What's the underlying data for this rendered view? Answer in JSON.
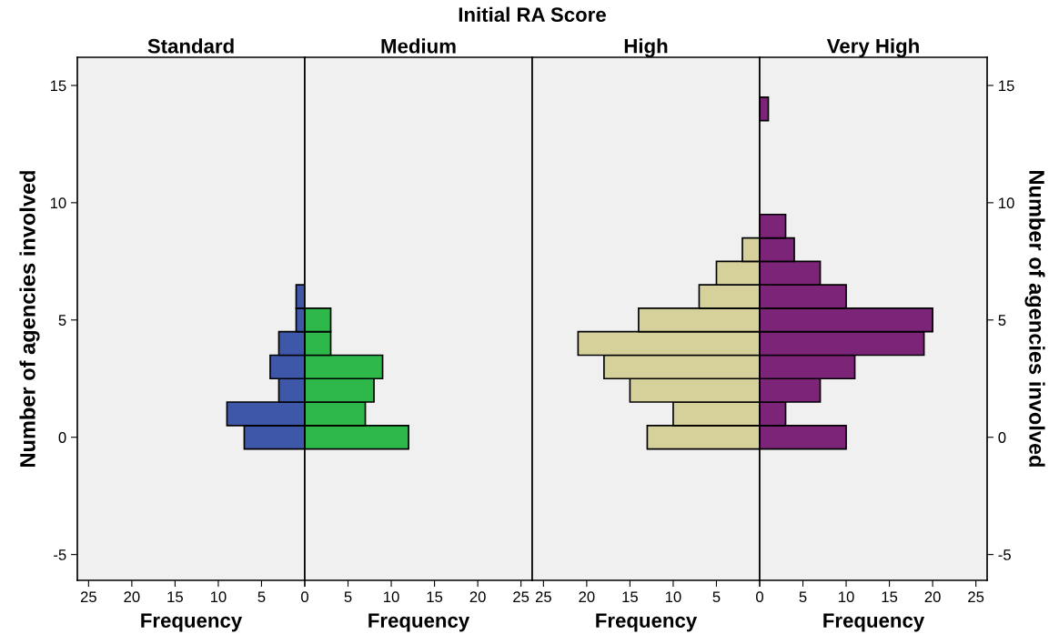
{
  "chart_data": [
    {
      "type": "histogram",
      "orientation": "horizontal",
      "title": "Standard",
      "xlabel": "Frequency",
      "ylabel": "Number of agencies involved",
      "annotations": [
        "Initial RA Score"
      ],
      "bins": [
        -0.5,
        0.5,
        1.5,
        2.5,
        3.5,
        4.5,
        5.5,
        6.5
      ],
      "series": [
        {
          "color": "#3f57a8",
          "values": [
            7,
            9,
            3,
            4,
            3,
            1,
            1
          ]
        }
      ],
      "xlim": [
        26.3,
        0
      ],
      "xticks": [
        {
          "value": 0,
          "label": null
        },
        5,
        10,
        15,
        20,
        25
      ],
      "ylim": [
        -6.1,
        16.2
      ],
      "yticks": [
        -5,
        0,
        5,
        10,
        15
      ],
      "grid": false
    },
    {
      "type": "histogram",
      "orientation": "horizontal",
      "title": "Medium",
      "xlabel": "Frequency",
      "bins": [
        -0.5,
        0.5,
        1.5,
        2.5,
        3.5,
        4.5,
        5.5
      ],
      "series": [
        {
          "color": "#2eb84a",
          "values": [
            12,
            7,
            8,
            9,
            3,
            3
          ]
        }
      ],
      "xlim": [
        0,
        26.3
      ],
      "xticks": [
        0,
        5,
        10,
        15,
        20,
        25
      ],
      "ylim": [
        -6.1,
        16.2
      ],
      "tick_labels": "x",
      "grid": false
    },
    {
      "type": "histogram",
      "orientation": "horizontal",
      "title": "High",
      "xlabel": "Frequency",
      "bins": [
        -0.5,
        0.5,
        1.5,
        2.5,
        3.5,
        4.5,
        5.5,
        6.5,
        7.5,
        8.5
      ],
      "series": [
        {
          "color": "#d6d09a",
          "values": [
            13,
            10,
            15,
            18,
            21,
            14,
            7,
            5,
            2
          ]
        }
      ],
      "xlim": [
        26.3,
        0
      ],
      "xticks": [
        {
          "value": 0,
          "label": null
        },
        5,
        10,
        15,
        20,
        25
      ],
      "ylim": [
        -6.1,
        16.2
      ],
      "tick_labels": "x",
      "grid": false
    },
    {
      "type": "histogram",
      "orientation": "horizontal",
      "title": "Very High",
      "xlabel": "Frequency",
      "ylabel": "Number of agencies involved",
      "bins": [
        -0.5,
        0.5,
        1.5,
        2.5,
        3.5,
        4.5,
        5.5,
        6.5,
        7.5,
        8.5,
        9.5,
        10.5,
        11.5,
        12.5,
        13.5,
        14.5
      ],
      "series": [
        {
          "color": "#7b2478",
          "values": [
            10,
            3,
            7,
            11,
            19,
            20,
            10,
            7,
            4,
            3,
            0,
            0,
            0,
            0,
            1
          ]
        }
      ],
      "xlim": [
        0,
        26.3
      ],
      "xticks": [
        0,
        5,
        10,
        15,
        20,
        25
      ],
      "ylim": [
        -6.1,
        16.2
      ],
      "yticks": [
        -5,
        0,
        5,
        10,
        15
      ],
      "grid": false
    }
  ]
}
